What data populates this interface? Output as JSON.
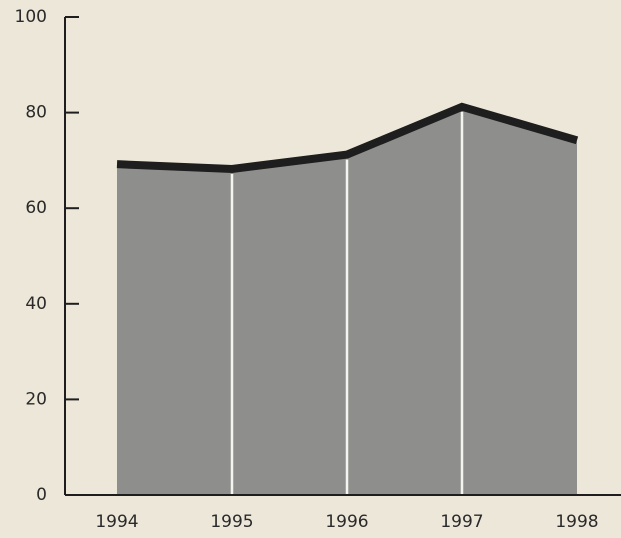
{
  "chart_data": {
    "type": "area",
    "categories": [
      "1994",
      "1995",
      "1996",
      "1997",
      "1998"
    ],
    "values": [
      69,
      68,
      71,
      81,
      74
    ],
    "color": "#8e8e8c",
    "line_color": "#1e1e1e",
    "ylim": [
      0,
      100
    ],
    "yticks": [
      0,
      20,
      40,
      60,
      80,
      100
    ]
  }
}
